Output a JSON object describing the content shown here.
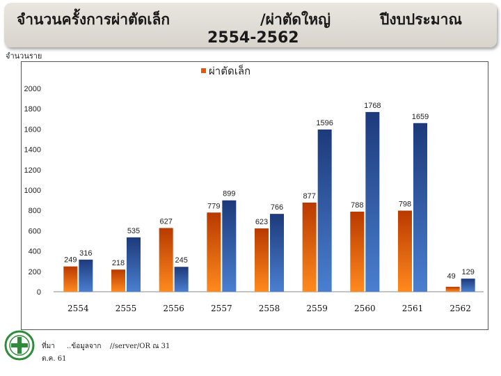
{
  "header": {
    "title_part1": "จำนวนครั้งการผ่าตัดเล็ก",
    "title_part2": "/ผ่าตัดใหญ่",
    "title_part3": "ปีงบประมาณ",
    "title_part4": "2554-2562"
  },
  "units_label": "จำนวนราย",
  "footer": {
    "source_a": "ที่มา",
    "source_b": "..ข้อมูลจาก",
    "source_c": "//server/OR ณ 31",
    "source_d": "ต.ค. 61"
  },
  "colors": {
    "minor_surgery": "#e05a0a",
    "major_surgery": "#2a4f9a"
  },
  "chart_data": {
    "type": "bar",
    "categories": [
      "2554",
      "2555",
      "2556",
      "2557",
      "2558",
      "2559",
      "2560",
      "2561",
      "2562"
    ],
    "series": [
      {
        "name": "ผ่าตัดเล็ก",
        "values": [
          249,
          218,
          627,
          779,
          623,
          877,
          788,
          798,
          49
        ]
      },
      {
        "values": [
          316,
          535,
          245,
          899,
          766,
          1596,
          1768,
          1659,
          129
        ]
      }
    ],
    "y_ticks": [
      "0",
      "200",
      "400",
      "600",
      "800",
      "1000",
      "1200",
      "1400",
      "1600",
      "1800",
      "2000"
    ],
    "ylim": [
      0,
      2000
    ],
    "grid": false,
    "legend_placement": "top-center"
  }
}
